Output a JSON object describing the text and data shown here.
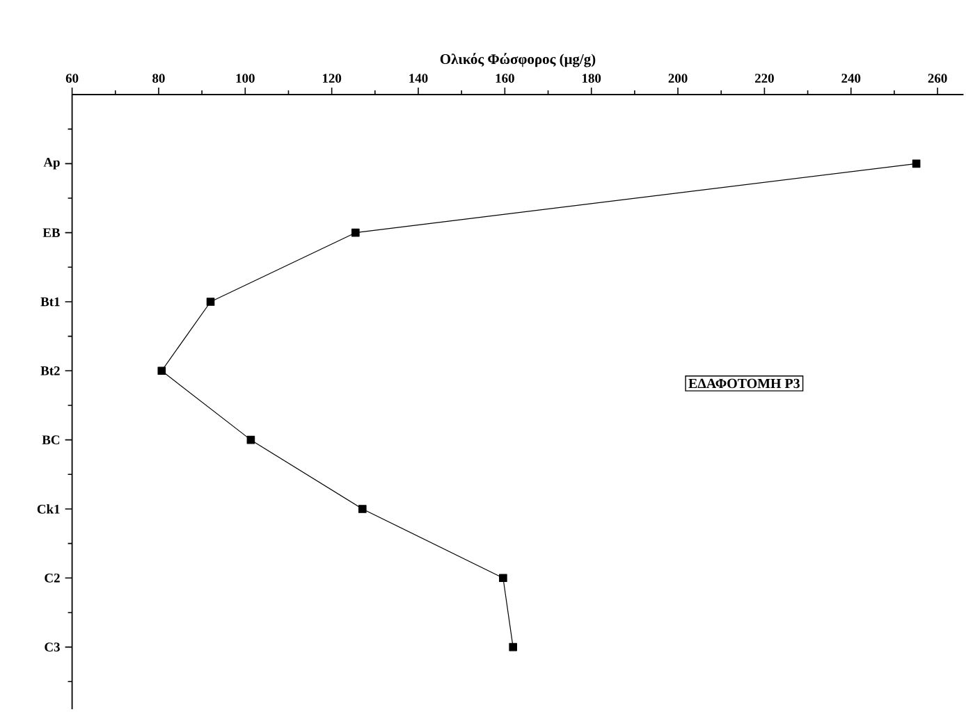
{
  "chart_data": {
    "type": "line",
    "orientation": "horizontal",
    "xlabel": "Ολικός Φώσφορος (μg/g)",
    "categories": [
      "Ap",
      "EB",
      "Bt1",
      "Bt2",
      "BC",
      "Ck1",
      "C2",
      "C3"
    ],
    "values": [
      255.1,
      125.5,
      92.0,
      80.7,
      101.3,
      127.1,
      159.6,
      161.9
    ],
    "color": "#000000",
    "marker": "square",
    "line_style": "solid",
    "xlim": [
      60,
      266
    ],
    "xticks": [
      60,
      80,
      100,
      120,
      140,
      160,
      180,
      200,
      220,
      240,
      260
    ],
    "annotations": [
      "ΕΔΑΦΟΤΟΜΗ P3"
    ]
  }
}
